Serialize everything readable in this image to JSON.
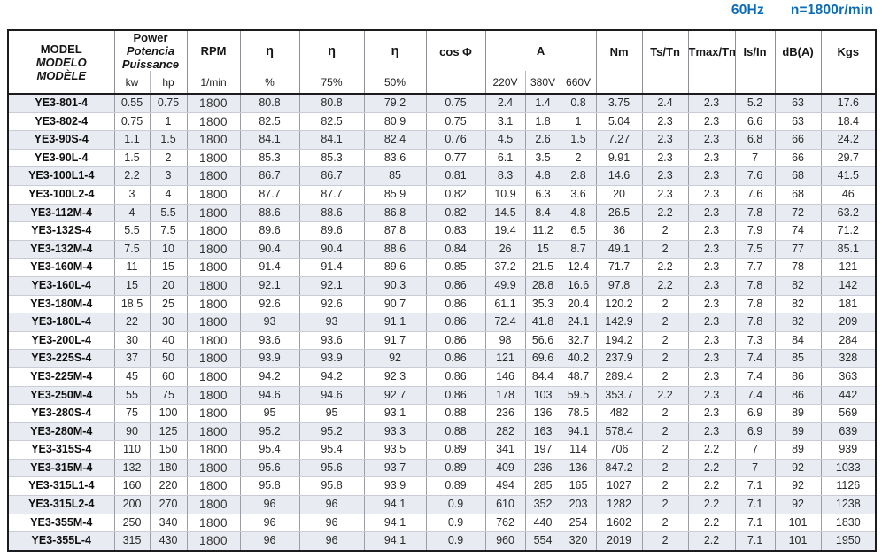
{
  "page": {
    "frequency_label": "60Hz",
    "speed_label": "n=1800r/min",
    "accent_color": "#0d6cb5",
    "stripe_color": "#e9ebf2"
  },
  "table": {
    "header": {
      "model_lines": [
        "MODEL",
        "MODELO",
        "MODÈLE"
      ],
      "power_lines": [
        "Power",
        "Potencia",
        "Puissance"
      ],
      "power_sub": [
        "kw",
        "hp"
      ],
      "rpm_label": "RPM",
      "rpm_sub": "1/min",
      "eta_label": "η",
      "eta_subs": [
        "%",
        "75%",
        "50%"
      ],
      "cos_phi_label": "cos Φ",
      "current_label": "A",
      "current_subs": [
        "220V",
        "380V",
        "660V"
      ],
      "nm_label": "Nm",
      "ts_tn_label": "Ts/Tn",
      "tmax_tn_label": "Tmax/Tn",
      "is_in_label": "Is/In",
      "db_label": "dB(A)",
      "kgs_label": "Kgs"
    },
    "rows": [
      [
        "YE3-801-4",
        "0.55",
        "0.75",
        "1800",
        "80.8",
        "80.8",
        "79.2",
        "0.75",
        "2.4",
        "1.4",
        "0.8",
        "3.75",
        "2.4",
        "2.3",
        "5.2",
        "63",
        "17.6"
      ],
      [
        "YE3-802-4",
        "0.75",
        "1",
        "1800",
        "82.5",
        "82.5",
        "80.9",
        "0.75",
        "3.1",
        "1.8",
        "1",
        "5.04",
        "2.3",
        "2.3",
        "6.6",
        "63",
        "18.4"
      ],
      [
        "YE3-90S-4",
        "1.1",
        "1.5",
        "1800",
        "84.1",
        "84.1",
        "82.4",
        "0.76",
        "4.5",
        "2.6",
        "1.5",
        "7.27",
        "2.3",
        "2.3",
        "6.8",
        "66",
        "24.2"
      ],
      [
        "YE3-90L-4",
        "1.5",
        "2",
        "1800",
        "85.3",
        "85.3",
        "83.6",
        "0.77",
        "6.1",
        "3.5",
        "2",
        "9.91",
        "2.3",
        "2.3",
        "7",
        "66",
        "29.7"
      ],
      [
        "YE3-100L1-4",
        "2.2",
        "3",
        "1800",
        "86.7",
        "86.7",
        "85",
        "0.81",
        "8.3",
        "4.8",
        "2.8",
        "14.6",
        "2.3",
        "2.3",
        "7.6",
        "68",
        "41.5"
      ],
      [
        "YE3-100L2-4",
        "3",
        "4",
        "1800",
        "87.7",
        "87.7",
        "85.9",
        "0.82",
        "10.9",
        "6.3",
        "3.6",
        "20",
        "2.3",
        "2.3",
        "7.6",
        "68",
        "46"
      ],
      [
        "YE3-112M-4",
        "4",
        "5.5",
        "1800",
        "88.6",
        "88.6",
        "86.8",
        "0.82",
        "14.5",
        "8.4",
        "4.8",
        "26.5",
        "2.2",
        "2.3",
        "7.8",
        "72",
        "63.2"
      ],
      [
        "YE3-132S-4",
        "5.5",
        "7.5",
        "1800",
        "89.6",
        "89.6",
        "87.8",
        "0.83",
        "19.4",
        "11.2",
        "6.5",
        "36",
        "2",
        "2.3",
        "7.9",
        "74",
        "71.2"
      ],
      [
        "YE3-132M-4",
        "7.5",
        "10",
        "1800",
        "90.4",
        "90.4",
        "88.6",
        "0.84",
        "26",
        "15",
        "8.7",
        "49.1",
        "2",
        "2.3",
        "7.5",
        "77",
        "85.1"
      ],
      [
        "YE3-160M-4",
        "11",
        "15",
        "1800",
        "91.4",
        "91.4",
        "89.6",
        "0.85",
        "37.2",
        "21.5",
        "12.4",
        "71.7",
        "2.2",
        "2.3",
        "7.7",
        "78",
        "121"
      ],
      [
        "YE3-160L-4",
        "15",
        "20",
        "1800",
        "92.1",
        "92.1",
        "90.3",
        "0.86",
        "49.9",
        "28.8",
        "16.6",
        "97.8",
        "2.2",
        "2.3",
        "7.8",
        "82",
        "142"
      ],
      [
        "YE3-180M-4",
        "18.5",
        "25",
        "1800",
        "92.6",
        "92.6",
        "90.7",
        "0.86",
        "61.1",
        "35.3",
        "20.4",
        "120.2",
        "2",
        "2.3",
        "7.8",
        "82",
        "181"
      ],
      [
        "YE3-180L-4",
        "22",
        "30",
        "1800",
        "93",
        "93",
        "91.1",
        "0.86",
        "72.4",
        "41.8",
        "24.1",
        "142.9",
        "2",
        "2.3",
        "7.8",
        "82",
        "209"
      ],
      [
        "YE3-200L-4",
        "30",
        "40",
        "1800",
        "93.6",
        "93.6",
        "91.7",
        "0.86",
        "98",
        "56.6",
        "32.7",
        "194.2",
        "2",
        "2.3",
        "7.3",
        "84",
        "284"
      ],
      [
        "YE3-225S-4",
        "37",
        "50",
        "1800",
        "93.9",
        "93.9",
        "92",
        "0.86",
        "121",
        "69.6",
        "40.2",
        "237.9",
        "2",
        "2.3",
        "7.4",
        "85",
        "328"
      ],
      [
        "YE3-225M-4",
        "45",
        "60",
        "1800",
        "94.2",
        "94.2",
        "92.3",
        "0.86",
        "146",
        "84.4",
        "48.7",
        "289.4",
        "2",
        "2.3",
        "7.4",
        "86",
        "363"
      ],
      [
        "YE3-250M-4",
        "55",
        "75",
        "1800",
        "94.6",
        "94.6",
        "92.7",
        "0.86",
        "178",
        "103",
        "59.5",
        "353.7",
        "2.2",
        "2.3",
        "7.4",
        "86",
        "442"
      ],
      [
        "YE3-280S-4",
        "75",
        "100",
        "1800",
        "95",
        "95",
        "93.1",
        "0.88",
        "236",
        "136",
        "78.5",
        "482",
        "2",
        "2.3",
        "6.9",
        "89",
        "569"
      ],
      [
        "YE3-280M-4",
        "90",
        "125",
        "1800",
        "95.2",
        "95.2",
        "93.3",
        "0.88",
        "282",
        "163",
        "94.1",
        "578.4",
        "2",
        "2.3",
        "6.9",
        "89",
        "639"
      ],
      [
        "YE3-315S-4",
        "110",
        "150",
        "1800",
        "95.4",
        "95.4",
        "93.5",
        "0.89",
        "341",
        "197",
        "114",
        "706",
        "2",
        "2.2",
        "7",
        "89",
        "939"
      ],
      [
        "YE3-315M-4",
        "132",
        "180",
        "1800",
        "95.6",
        "95.6",
        "93.7",
        "0.89",
        "409",
        "236",
        "136",
        "847.2",
        "2",
        "2.2",
        "7",
        "92",
        "1033"
      ],
      [
        "YE3-315L1-4",
        "160",
        "220",
        "1800",
        "95.8",
        "95.8",
        "93.9",
        "0.89",
        "494",
        "285",
        "165",
        "1027",
        "2",
        "2.2",
        "7.1",
        "92",
        "1126"
      ],
      [
        "YE3-315L2-4",
        "200",
        "270",
        "1800",
        "96",
        "96",
        "94.1",
        "0.9",
        "610",
        "352",
        "203",
        "1282",
        "2",
        "2.2",
        "7.1",
        "92",
        "1238"
      ],
      [
        "YE3-355M-4",
        "250",
        "340",
        "1800",
        "96",
        "96",
        "94.1",
        "0.9",
        "762",
        "440",
        "254",
        "1602",
        "2",
        "2.2",
        "7.1",
        "101",
        "1830"
      ],
      [
        "YE3-355L-4",
        "315",
        "430",
        "1800",
        "96",
        "96",
        "94.1",
        "0.9",
        "960",
        "554",
        "320",
        "2019",
        "2",
        "2.2",
        "7.1",
        "101",
        "1950"
      ]
    ]
  }
}
